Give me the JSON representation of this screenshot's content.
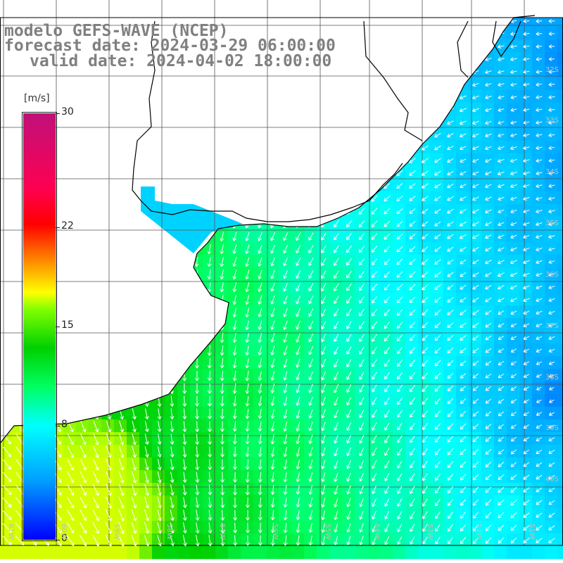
{
  "title": {
    "line1": "modelo GEFS-WAVE (NCEP)",
    "line2": "forecast date: 2024-03-29 06:00:00",
    "line3": "valid date: 2024-04-02 18:00:00"
  },
  "colorbar": {
    "unit": "[m/s]",
    "labels": [
      "30",
      "22",
      "15",
      "8",
      "0"
    ],
    "values": [
      30,
      22,
      15,
      8,
      0
    ],
    "range": [
      0,
      30
    ]
  },
  "lat_labels": [
    "32S",
    "33S",
    "34S",
    "35S",
    "36S",
    "37S",
    "38S",
    "39S",
    "40S"
  ],
  "lon_labels": [
    "61W",
    "60W",
    "59W",
    "58W",
    "57W",
    "56W",
    "55W",
    "54W",
    "53W",
    "52W",
    "51W"
  ],
  "colors": {
    "land": "#ffffff",
    "coast": "#000000",
    "grid": "#555555",
    "arrows": "#ffffff",
    "labels": "#bfbfbf",
    "title": "#808080"
  },
  "field": {
    "name": "wind speed",
    "units": "m/s",
    "max_value_near": "lower-left, approx 15 m/s",
    "min_value_near": "east side, approx 3 m/s"
  }
}
